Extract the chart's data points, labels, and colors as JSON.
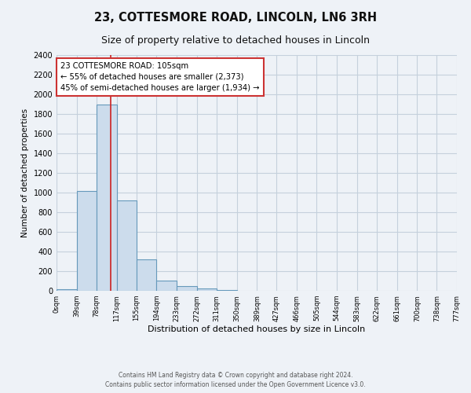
{
  "title": "23, COTTESMORE ROAD, LINCOLN, LN6 3RH",
  "subtitle": "Size of property relative to detached houses in Lincoln",
  "xlabel": "Distribution of detached houses by size in Lincoln",
  "ylabel": "Number of detached properties",
  "bar_edges": [
    0,
    39,
    78,
    117,
    155,
    194,
    233,
    272,
    311,
    350,
    389,
    427,
    466,
    505,
    544,
    583,
    622,
    661,
    700,
    738,
    777
  ],
  "bar_heights": [
    20,
    1020,
    1900,
    920,
    320,
    105,
    50,
    25,
    10,
    0,
    0,
    0,
    0,
    0,
    0,
    0,
    0,
    0,
    0,
    0
  ],
  "bar_color": "#ccdcec",
  "bar_edge_color": "#6699bb",
  "red_line_x": 105,
  "annotation_line1": "23 COTTESMORE ROAD: 105sqm",
  "annotation_line2": "← 55% of detached houses are smaller (2,373)",
  "annotation_line3": "45% of semi-detached houses are larger (1,934) →",
  "annotation_box_color": "white",
  "annotation_box_edge": "#cc3333",
  "ylim": [
    0,
    2400
  ],
  "yticks": [
    0,
    200,
    400,
    600,
    800,
    1000,
    1200,
    1400,
    1600,
    1800,
    2000,
    2200,
    2400
  ],
  "xtick_labels": [
    "0sqm",
    "39sqm",
    "78sqm",
    "117sqm",
    "155sqm",
    "194sqm",
    "233sqm",
    "272sqm",
    "311sqm",
    "350sqm",
    "389sqm",
    "427sqm",
    "466sqm",
    "505sqm",
    "544sqm",
    "583sqm",
    "622sqm",
    "661sqm",
    "700sqm",
    "738sqm",
    "777sqm"
  ],
  "footer_line1": "Contains HM Land Registry data © Crown copyright and database right 2024.",
  "footer_line2": "Contains public sector information licensed under the Open Government Licence v3.0.",
  "bg_color": "#eef2f7",
  "grid_color": "#c5d0dc",
  "title_fontsize": 10.5,
  "subtitle_fontsize": 9
}
